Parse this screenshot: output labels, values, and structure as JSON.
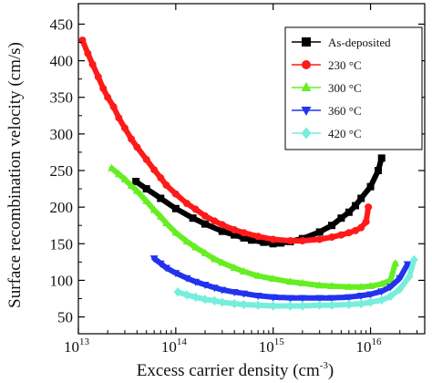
{
  "chart_data": {
    "type": "scatter",
    "xlabel": "Excess carrier density (cm",
    "xlabel_exponent": "-3",
    "xlabel_close": ")",
    "ylabel": "Surface recombination velocity (cm/s)",
    "x_scale": "log",
    "x_range": [
      10000000000000.0,
      3.6e+16
    ],
    "y_range": [
      27,
      478
    ],
    "grid": false,
    "legend_placement": "top-right",
    "y_ticks": [
      50,
      100,
      150,
      200,
      250,
      300,
      350,
      400,
      450
    ],
    "y_tick_labels": [
      "50",
      "100",
      "150",
      "200",
      "250",
      "300",
      "350",
      "400",
      "450"
    ],
    "x_ticks": [
      {
        "value": 10000000000000.0,
        "base": "10",
        "exp": "13"
      },
      {
        "value": 100000000000000.0,
        "base": "10",
        "exp": "14"
      },
      {
        "value": 1000000000000000.0,
        "base": "10",
        "exp": "15"
      },
      {
        "value": 1e+16,
        "base": "10",
        "exp": "16"
      }
    ],
    "series": [
      {
        "name": "As-deposited",
        "color": "#000000",
        "marker": "square",
        "x": [
          39000000000000.0,
          50000000000000.0,
          70000000000000.0,
          100000000000000.0,
          150000000000000.0,
          200000000000000.0,
          300000000000000.0,
          400000000000000.0,
          500000000000000.0,
          600000000000000.0,
          800000000000000.0,
          1000000000000000.0,
          1200000000000000.0,
          1500000000000000.0,
          2000000000000000.0,
          3000000000000000.0,
          4000000000000000.0,
          5000000000000000.0,
          6000000000000000.0,
          7000000000000000.0,
          8000000000000000.0,
          1e+16,
          1.2e+16,
          1.3e+16
        ],
        "y": [
          235,
          225,
          212,
          198,
          185,
          177,
          167,
          162,
          158,
          155,
          152,
          150,
          151,
          153,
          157,
          166,
          175,
          185,
          193,
          202,
          212,
          228,
          250,
          267
        ]
      },
      {
        "name": "230 °C",
        "color": "#ff1a1a",
        "marker": "circle",
        "x": [
          11000000000000.0,
          12500000000000.0,
          14000000000000.0,
          16000000000000.0,
          18000000000000.0,
          20000000000000.0,
          23000000000000.0,
          26000000000000.0,
          30000000000000.0,
          35000000000000.0,
          40000000000000.0,
          50000000000000.0,
          60000000000000.0,
          70000000000000.0,
          80000000000000.0,
          100000000000000.0,
          130000000000000.0,
          160000000000000.0,
          200000000000000.0,
          250000000000000.0,
          300000000000000.0,
          400000000000000.0,
          500000000000000.0,
          700000000000000.0,
          1000000000000000.0,
          1500000000000000.0,
          2000000000000000.0,
          3000000000000000.0,
          4000000000000000.0,
          5000000000000000.0,
          6000000000000000.0,
          7000000000000000.0,
          8000000000000000.0,
          9000000000000000.0,
          9500000000000000.0
        ],
        "y": [
          428,
          410,
          395,
          378,
          362,
          350,
          337,
          322,
          308,
          293,
          282,
          265,
          251,
          240,
          230,
          218,
          205,
          197,
          188,
          181,
          176,
          169,
          165,
          160,
          156,
          154,
          154,
          156,
          159,
          162,
          165,
          168,
          172,
          180,
          200
        ]
      },
      {
        "name": "300 °C",
        "color": "#66ee22",
        "marker": "triangle-up",
        "x": [
          22000000000000.0,
          26000000000000.0,
          30000000000000.0,
          35000000000000.0,
          40000000000000.0,
          50000000000000.0,
          60000000000000.0,
          70000000000000.0,
          80000000000000.0,
          100000000000000.0,
          130000000000000.0,
          160000000000000.0,
          200000000000000.0,
          250000000000000.0,
          300000000000000.0,
          400000000000000.0,
          500000000000000.0,
          700000000000000.0,
          1000000000000000.0,
          1500000000000000.0,
          2000000000000000.0,
          3000000000000000.0,
          4000000000000000.0,
          6000000000000000.0,
          8000000000000000.0,
          1e+16,
          1.3e+16,
          1.6e+16,
          1.8e+16
        ],
        "y": [
          253,
          245,
          238,
          229,
          222,
          208,
          196,
          187,
          178,
          165,
          153,
          145,
          137,
          129,
          124,
          117,
          112,
          106,
          102,
          98,
          96,
          93,
          92,
          91,
          91,
          92,
          95,
          100,
          123
        ]
      },
      {
        "name": "360 °C",
        "color": "#2233ee",
        "marker": "triangle-down",
        "x": [
          60000000000000.0,
          70000000000000.0,
          80000000000000.0,
          100000000000000.0,
          130000000000000.0,
          160000000000000.0,
          200000000000000.0,
          250000000000000.0,
          300000000000000.0,
          400000000000000.0,
          500000000000000.0,
          700000000000000.0,
          1000000000000000.0,
          1500000000000000.0,
          2000000000000000.0,
          3000000000000000.0,
          4000000000000000.0,
          6000000000000000.0,
          8000000000000000.0,
          1e+16,
          1.3e+16,
          1.6e+16,
          2e+16,
          2.4e+16
        ],
        "y": [
          130,
          123,
          117,
          110,
          103,
          98,
          94,
          90,
          87,
          84,
          82,
          79,
          77,
          76,
          76,
          76,
          76,
          77,
          79,
          81,
          85,
          91,
          103,
          122
        ]
      },
      {
        "name": "420 °C",
        "color": "#77eedd",
        "marker": "diamond",
        "x": [
          105000000000000.0,
          130000000000000.0,
          160000000000000.0,
          200000000000000.0,
          250000000000000.0,
          300000000000000.0,
          400000000000000.0,
          500000000000000.0,
          700000000000000.0,
          1000000000000000.0,
          1500000000000000.0,
          2000000000000000.0,
          3000000000000000.0,
          4000000000000000.0,
          6000000000000000.0,
          8000000000000000.0,
          1e+16,
          1.3e+16,
          1.6e+16,
          2e+16,
          2.5e+16,
          2.8e+16
        ],
        "y": [
          84,
          80,
          77,
          74,
          72,
          70,
          68,
          67,
          66,
          65,
          65,
          65,
          66,
          66,
          67,
          68,
          70,
          73,
          78,
          88,
          105,
          128
        ]
      }
    ]
  }
}
